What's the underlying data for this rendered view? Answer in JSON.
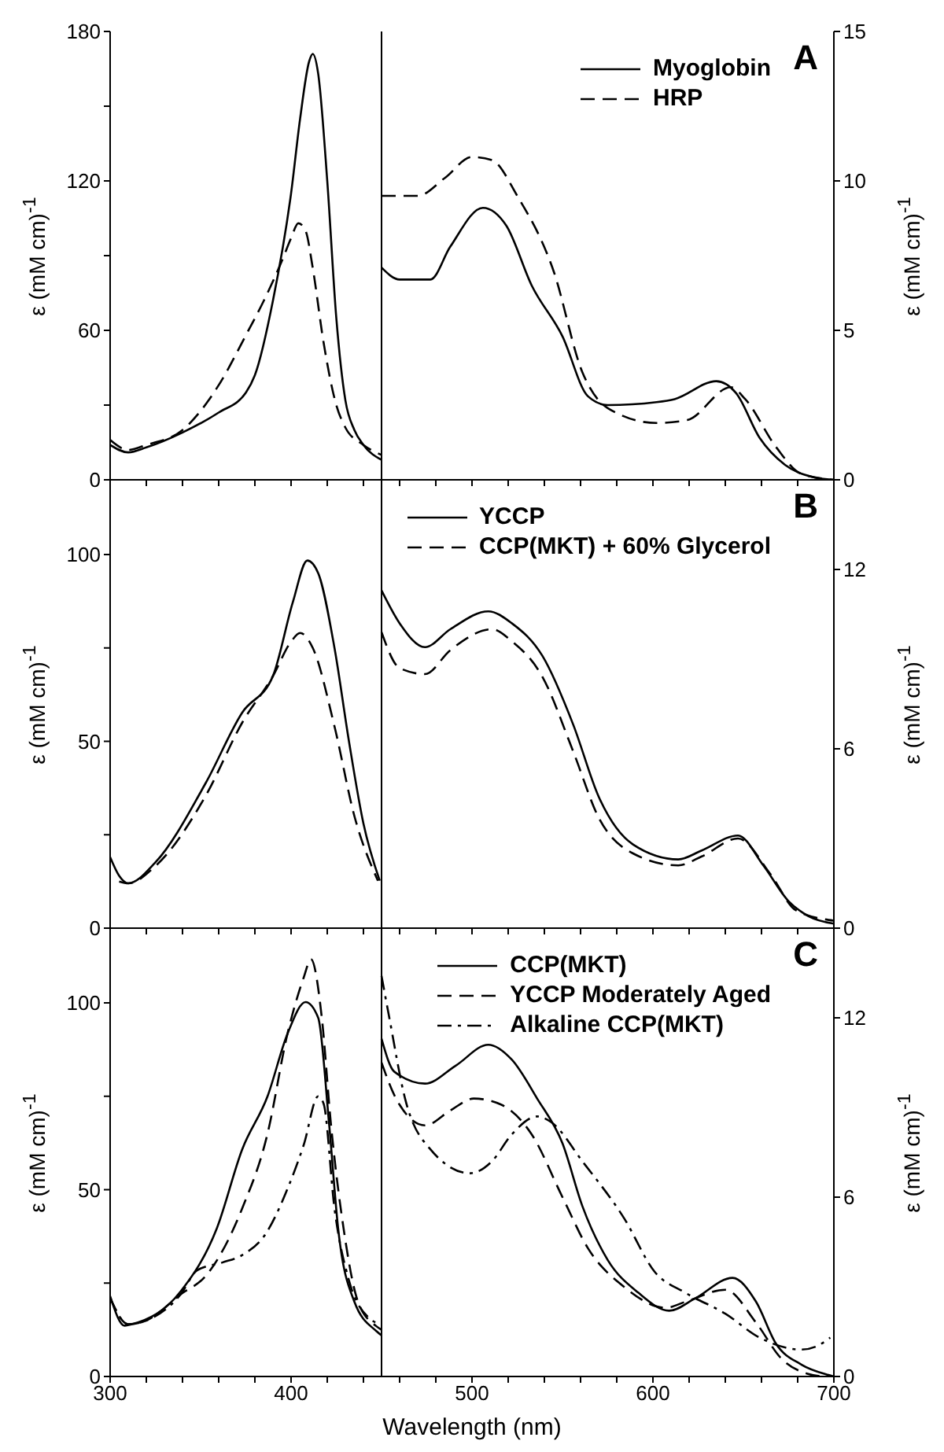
{
  "chart_data": [
    {
      "type": "line",
      "title": "A",
      "ylabel": "ε (mM cm)$^{-1}$",
      "y2label": "ε (mM cm)$^{-1}$",
      "xlim": [
        300,
        700
      ],
      "xticks": [
        300,
        {
          "value": 320,
          "label": null
        },
        {
          "value": 340,
          "label": null
        },
        {
          "value": 360,
          "label": null
        },
        {
          "value": 380,
          "label": null
        },
        400,
        {
          "value": 420,
          "label": null
        },
        {
          "value": 440,
          "label": null
        },
        {
          "value": 460,
          "label": null
        },
        {
          "value": 480,
          "label": null
        },
        500,
        {
          "value": 520,
          "label": null
        },
        {
          "value": 540,
          "label": null
        },
        {
          "value": 560,
          "label": null
        },
        {
          "value": 580,
          "label": null
        },
        600,
        {
          "value": 620,
          "label": null
        },
        {
          "value": 640,
          "label": null
        },
        {
          "value": 660,
          "label": null
        },
        {
          "value": 680,
          "label": null
        },
        700
      ],
      "ylim": [
        0,
        180
      ],
      "yticks": [
        0,
        {
          "value": 30,
          "label": null
        },
        60,
        {
          "value": 90,
          "label": null
        },
        120,
        {
          "value": 150,
          "label": null
        },
        180
      ],
      "y2lim": [
        0,
        15
      ],
      "y2ticks": [
        0,
        5,
        10,
        15
      ],
      "tick_labels": "y",
      "legend": "top right",
      "ref_lines": [
        {
          "axis": "x",
          "value": 450,
          "color": "#000000"
        }
      ],
      "series": [
        {
          "name": "Myoglobin",
          "color": "#000000",
          "line_style": "solid",
          "x": [
            300,
            310,
            320,
            340,
            360,
            375,
            380,
            390,
            400,
            405,
            410,
            412,
            415,
            420,
            425,
            430,
            435,
            440,
            450
          ],
          "values": [
            14,
            11,
            13,
            19,
            27,
            35,
            42,
            72,
            115,
            145,
            168,
            171,
            163,
            120,
            65,
            32,
            20,
            14,
            8
          ]
        },
        {
          "name": "HRP",
          "color": "#000000",
          "line_style": "dashed",
          "x": [
            300,
            310,
            320,
            340,
            360,
            375,
            385,
            395,
            400,
            404,
            408,
            412,
            418,
            425,
            430,
            440,
            450
          ],
          "values": [
            16,
            12,
            14,
            20,
            38,
            58,
            72,
            88,
            97,
            103,
            100,
            85,
            55,
            30,
            21,
            14,
            10
          ]
        },
        {
          "axis": "y2",
          "color": "#000000",
          "line_style": "solid",
          "x": [
            450,
            460,
            477,
            488,
            506,
            519,
            533,
            550,
            564,
            575,
            602,
            612,
            635,
            646,
            659,
            673,
            688,
            700
          ],
          "values": [
            7.1,
            6.7,
            6.7,
            7.8,
            9.1,
            8.5,
            6.5,
            4.8,
            2.8,
            2.5,
            2.6,
            2.7,
            3.3,
            2.9,
            1.4,
            0.5,
            0.1,
            0
          ]
        },
        {
          "axis": "y2",
          "color": "#000000",
          "line_style": "dashed",
          "x": [
            450,
            470,
            485,
            500,
            511,
            525,
            545,
            561,
            575,
            602,
            619,
            643,
            651,
            668,
            682,
            700
          ],
          "values": [
            9.5,
            9.5,
            10.1,
            10.8,
            10.7,
            9.5,
            7.0,
            3.6,
            2.4,
            1.9,
            2.0,
            3.1,
            2.7,
            1.1,
            0.2,
            0
          ]
        }
      ]
    },
    {
      "type": "line",
      "title": "B",
      "ylabel": "ε (mM cm)$^{-1}$",
      "y2label": "ε (mM cm)$^{-1}$",
      "xlim": [
        300,
        700
      ],
      "xticks": [
        300,
        {
          "value": 320,
          "label": null
        },
        {
          "value": 340,
          "label": null
        },
        {
          "value": 360,
          "label": null
        },
        {
          "value": 380,
          "label": null
        },
        400,
        {
          "value": 420,
          "label": null
        },
        {
          "value": 440,
          "label": null
        },
        {
          "value": 460,
          "label": null
        },
        {
          "value": 480,
          "label": null
        },
        500,
        {
          "value": 520,
          "label": null
        },
        {
          "value": 540,
          "label": null
        },
        {
          "value": 560,
          "label": null
        },
        {
          "value": 580,
          "label": null
        },
        600,
        {
          "value": 620,
          "label": null
        },
        {
          "value": 640,
          "label": null
        },
        {
          "value": 660,
          "label": null
        },
        {
          "value": 680,
          "label": null
        },
        700
      ],
      "ylim": [
        0,
        120
      ],
      "yticks": [
        0,
        {
          "value": 25,
          "label": null
        },
        50,
        {
          "value": 75,
          "label": null
        },
        100
      ],
      "y2lim": [
        0,
        15
      ],
      "y2ticks": [
        0,
        6,
        12
      ],
      "tick_labels": "y",
      "legend": "top right",
      "ref_lines": [
        {
          "axis": "x",
          "value": 450,
          "color": "#000000"
        }
      ],
      "series": [
        {
          "name": "YCCP",
          "color": "#000000",
          "line_style": "solid",
          "x": [
            300,
            305,
            310,
            325,
            353,
            373,
            390,
            401,
            409,
            415,
            424,
            432,
            440,
            449
          ],
          "values": [
            19,
            14,
            12,
            17.6,
            39,
            57.7,
            67.5,
            87.3,
            98.4,
            95,
            75,
            50,
            28,
            12.7
          ]
        },
        {
          "name": "CCP(MKT) + 60% Glycerol",
          "color": "#000000",
          "line_style": "dashed",
          "x": [
            305,
            310,
            325,
            353,
            373,
            390,
            400,
            405,
            412,
            424,
            435,
            448
          ],
          "values": [
            12.5,
            12,
            16.6,
            35.6,
            55,
            67.5,
            76.7,
            79,
            75,
            54,
            30,
            12.7
          ]
        },
        {
          "axis": "y2",
          "color": "#000000",
          "line_style": "solid",
          "x": [
            450,
            460,
            474,
            488,
            509,
            522,
            539,
            556,
            570,
            589,
            614,
            627,
            647,
            661,
            675,
            686,
            700
          ],
          "values": [
            11.3,
            10.2,
            9.4,
            10,
            10.6,
            10.2,
            9.1,
            6.8,
            4.4,
            2.8,
            2.3,
            2.6,
            3.1,
            2.1,
            0.9,
            0.4,
            0.15
          ]
        },
        {
          "axis": "y2",
          "color": "#000000",
          "line_style": "dashed",
          "x": [
            450,
            460,
            474,
            488,
            511,
            522,
            539,
            556,
            570,
            589,
            614,
            627,
            647,
            665,
            679,
            700
          ],
          "values": [
            9.9,
            8.7,
            8.5,
            9.3,
            10,
            9.6,
            8.4,
            5.9,
            3.7,
            2.5,
            2.1,
            2.4,
            3,
            1.8,
            0.6,
            0.25
          ]
        }
      ]
    },
    {
      "type": "line",
      "title": "C",
      "xlabel": "Wavelength (nm)",
      "ylabel": "ε (mM cm)$^{-1}$",
      "y2label": "ε (mM cm)$^{-1}$",
      "xlim": [
        300,
        700
      ],
      "xticks": [
        300,
        {
          "value": 320,
          "label": null
        },
        {
          "value": 340,
          "label": null
        },
        {
          "value": 360,
          "label": null
        },
        {
          "value": 380,
          "label": null
        },
        400,
        {
          "value": 420,
          "label": null
        },
        {
          "value": 440,
          "label": null
        },
        {
          "value": 460,
          "label": null
        },
        {
          "value": 480,
          "label": null
        },
        500,
        {
          "value": 520,
          "label": null
        },
        {
          "value": 540,
          "label": null
        },
        {
          "value": 560,
          "label": null
        },
        {
          "value": 580,
          "label": null
        },
        600,
        {
          "value": 620,
          "label": null
        },
        {
          "value": 640,
          "label": null
        },
        {
          "value": 660,
          "label": null
        },
        {
          "value": 680,
          "label": null
        },
        700
      ],
      "ylim": [
        0,
        120
      ],
      "yticks": [
        0,
        {
          "value": 25,
          "label": null
        },
        50,
        {
          "value": 75,
          "label": null
        },
        100
      ],
      "y2lim": [
        0,
        15
      ],
      "y2ticks": [
        0,
        6,
        12
      ],
      "legend": "top right",
      "ref_lines": [
        {
          "axis": "x",
          "value": 450,
          "color": "#000000"
        }
      ],
      "series": [
        {
          "name": "CCP(MKT)",
          "color": "#000000",
          "line_style": "solid",
          "x": [
            300,
            308,
            312,
            339,
            359,
            373,
            387,
            398,
            408,
            415,
            421,
            426,
            435,
            447,
            450
          ],
          "values": [
            21.5,
            13.6,
            14,
            22.8,
            39.7,
            60.8,
            75,
            91.7,
            100.2,
            96,
            67.7,
            39.7,
            20,
            12.2,
            11
          ]
        },
        {
          "name": "YCCP Moderately Aged",
          "color": "#000000",
          "line_style": "dashed",
          "x": [
            300,
            310,
            320,
            339,
            353,
            373,
            387,
            398,
            407,
            411,
            417,
            422,
            429,
            437,
            447,
            450
          ],
          "values": [
            21,
            14,
            15,
            22,
            27,
            45,
            65,
            91.7,
            106.8,
            111.7,
            96,
            67.7,
            39.7,
            20,
            13.5,
            12.5
          ]
        },
        {
          "name": "Alkaline CCP(MKT)",
          "color": "#000000",
          "line_style": "dashdot",
          "x": [
            300,
            310,
            320,
            339,
            348,
            362,
            373,
            386,
            398,
            407,
            415,
            418,
            424,
            432,
            443,
            450
          ],
          "values": [
            21,
            14,
            15,
            22,
            28.4,
            30.5,
            32.5,
            38.2,
            50.2,
            62,
            75,
            73,
            45,
            25.7,
            15.7,
            14
          ]
        },
        {
          "axis": "y2",
          "color": "#000000",
          "line_style": "solid",
          "x": [
            450,
            457,
            474,
            491,
            509,
            522,
            536,
            550,
            561,
            575,
            592,
            609,
            623,
            644,
            657,
            668,
            682,
            697,
            700
          ],
          "values": [
            11.3,
            10.2,
            9.8,
            10.4,
            11.1,
            10.6,
            9.3,
            7.8,
            5.7,
            3.9,
            2.8,
            2.2,
            2.6,
            3.3,
            2.5,
            1.1,
            0.4,
            0.05,
            0
          ]
        },
        {
          "axis": "y2",
          "color": "#000000",
          "line_style": "dashed",
          "x": [
            450,
            458,
            474,
            488,
            501,
            516,
            533,
            550,
            564,
            584,
            607,
            618,
            640,
            657,
            671,
            685,
            696,
            700
          ],
          "values": [
            10.5,
            9.3,
            8.4,
            8.9,
            9.3,
            9.1,
            8.1,
            6,
            4.3,
            3,
            2.3,
            2.5,
            2.9,
            1.8,
            0.6,
            0.1,
            0,
            0
          ]
        },
        {
          "axis": "y2",
          "color": "#000000",
          "line_style": "dashdot",
          "x": [
            450,
            454,
            463,
            477,
            499,
            511,
            522,
            536,
            544,
            561,
            584,
            601,
            618,
            640,
            659,
            682,
            690,
            698
          ],
          "values": [
            13.4,
            12.1,
            9.3,
            7.6,
            6.8,
            7.2,
            8.1,
            8.7,
            8.5,
            7.2,
            5.3,
            3.5,
            2.8,
            2.1,
            1.3,
            0.9,
            1,
            1.3
          ]
        }
      ]
    }
  ]
}
